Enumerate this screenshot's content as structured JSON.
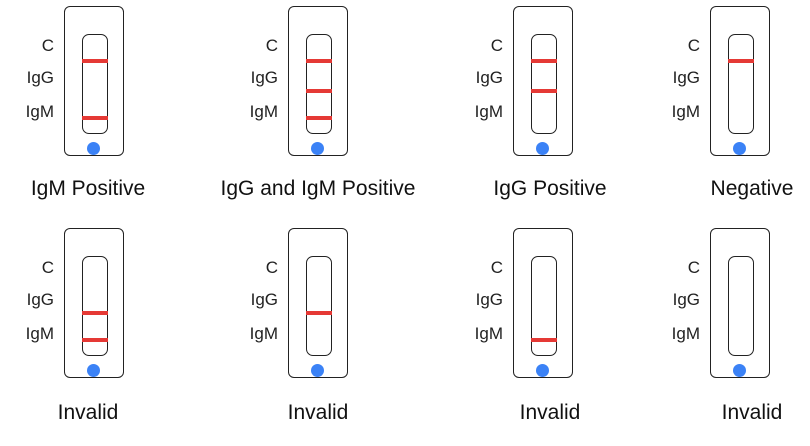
{
  "colors": {
    "band": "#e53935",
    "well": "#3b82f6",
    "outline": "#222222"
  },
  "line_labels": [
    "C",
    "IgG",
    "IgM"
  ],
  "panels": [
    {
      "caption": "IgM Positive",
      "lines": {
        "C": true,
        "IgG": false,
        "IgM": true
      }
    },
    {
      "caption": "IgG and IgM Positive",
      "lines": {
        "C": true,
        "IgG": true,
        "IgM": true
      }
    },
    {
      "caption": "IgG Positive",
      "lines": {
        "C": true,
        "IgG": true,
        "IgM": false
      }
    },
    {
      "caption": "Negative",
      "lines": {
        "C": true,
        "IgG": false,
        "IgM": false
      }
    },
    {
      "caption": "Invalid",
      "lines": {
        "C": false,
        "IgG": true,
        "IgM": true
      }
    },
    {
      "caption": "Invalid",
      "lines": {
        "C": false,
        "IgG": true,
        "IgM": false
      }
    },
    {
      "caption": "Invalid",
      "lines": {
        "C": false,
        "IgG": false,
        "IgM": true
      }
    },
    {
      "caption": "Invalid",
      "lines": {
        "C": false,
        "IgG": false,
        "IgM": false
      }
    }
  ]
}
